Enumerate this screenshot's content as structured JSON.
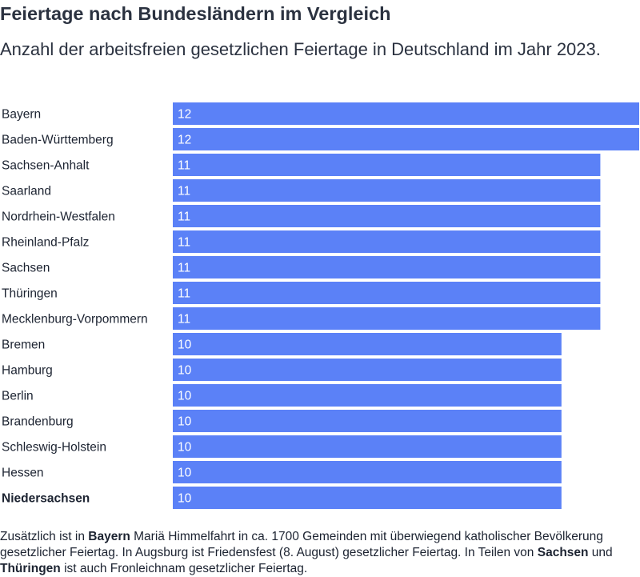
{
  "chart_data": {
    "type": "bar",
    "orientation": "horizontal",
    "title": "Feiertage nach Bundesländern im Vergleich",
    "subtitle": "Anzahl der arbeitsfreien gesetzlichen Feiertage in Deutschland im Jahr 2023.",
    "categories": [
      "Bayern",
      "Baden-Württemberg",
      "Sachsen-Anhalt",
      "Saarland",
      "Nordrhein-Westfalen",
      "Rheinland-Pfalz",
      "Sachsen",
      "Thüringen",
      "Mecklenburg-Vorpommern",
      "Bremen",
      "Hamburg",
      "Berlin",
      "Brandenburg",
      "Schleswig-Holstein",
      "Hessen",
      "Niedersachsen"
    ],
    "values": [
      12,
      12,
      11,
      11,
      11,
      11,
      11,
      11,
      11,
      10,
      10,
      10,
      10,
      10,
      10,
      10
    ],
    "highlighted_category": "Niedersachsen",
    "xlim": [
      0,
      12
    ],
    "grid": false,
    "bar_color": "#5b81f7",
    "label_color": "#ffffff"
  },
  "footnote": {
    "p1_before": "Zusätzlich ist in ",
    "p1_bold": "Bayern",
    "p1_after": " Mariä Himmelfahrt in ca. 1700 Gemeinden mit überwiegend katholischer Bevölkerung gesetzlicher Feiertag. In Augsburg ist Friedensfest (8. August) gesetzlicher Feiertag. In Teilen von ",
    "p2_bold": "Sachsen",
    "p2_mid": " und ",
    "p3_bold": "Thüringen",
    "p3_after": " ist auch Fronleichnam gesetzlicher Feiertag."
  }
}
